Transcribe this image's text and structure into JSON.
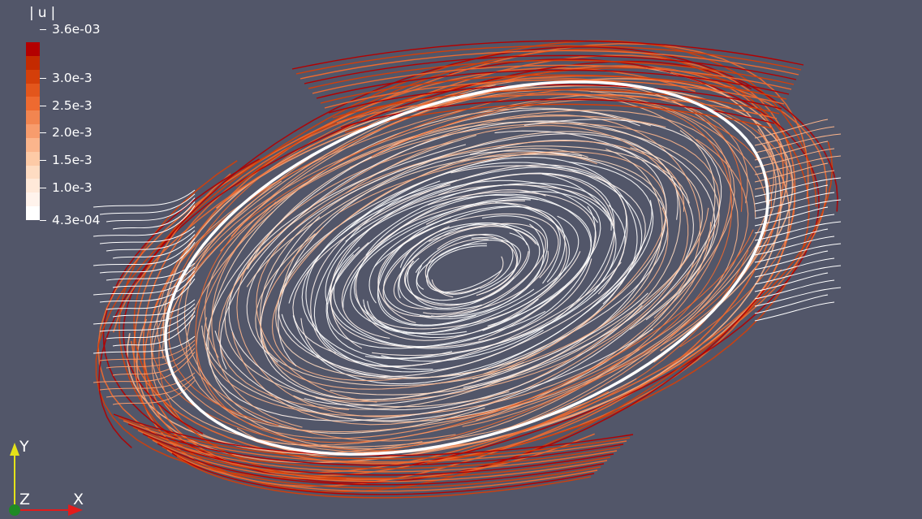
{
  "scalar_bar": {
    "title": "|u|",
    "labels": [
      "3.6e-03",
      "3.0e-3",
      "2.5e-3",
      "2.0e-3",
      "1.5e-3",
      "1.0e-3",
      "4.3e-04"
    ],
    "colors": [
      "#b30000",
      "#c42a00",
      "#d43f0a",
      "#e3561c",
      "#ee6a30",
      "#f28550",
      "#f79c6d",
      "#fbb58c",
      "#fdcaa6",
      "#fedcc2",
      "#ffe9d9",
      "#fff3ec",
      "#ffffff"
    ]
  },
  "orientation_axes": {
    "y_label": "Y",
    "z_label": "Z",
    "x_label": "X",
    "colors": {
      "x": "#e31b1b",
      "y": "#e5e219",
      "z": "#1f8a25"
    }
  },
  "render": {
    "background": "#525669",
    "streamline_colors": [
      "#ffffff",
      "#fff3ec",
      "#fedcc2",
      "#fbb58c",
      "#f79c6d",
      "#ee6a30",
      "#d43f0a",
      "#b30000"
    ]
  }
}
